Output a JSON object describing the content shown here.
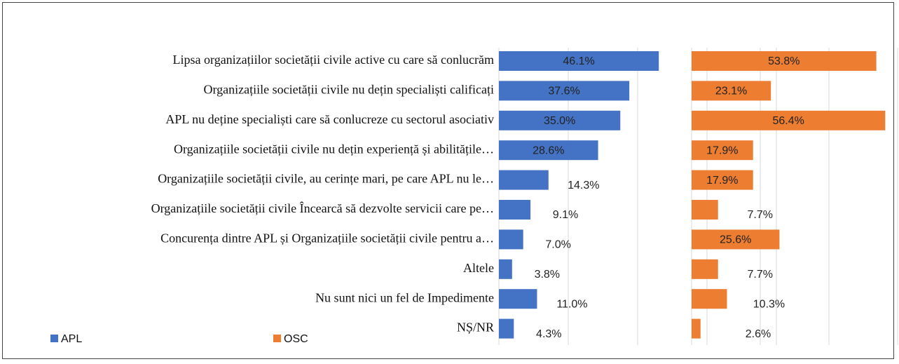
{
  "chart_data": {
    "type": "bar",
    "orientation": "horizontal",
    "categories": [
      "Lipsa organizațiilor societății civile active cu care să conlucrăm",
      "Organizațiile societății civile nu dețin specialiști calificați",
      "APL  nu deține specialiști care să conlucreze cu sectorul asociativ",
      "Organizațiile societății civile nu dețin experiență și abilitățile…",
      "Organizațiile societății civile, au cerințe mari, pe care APL nu le…",
      "Organizațiile societății civile Încearcă să dezvolte servicii care pe…",
      "Concurența  dintre APL și Organizațiile societății civile pentru a…",
      "Altele",
      "Nu sunt nici un fel de Impedimente",
      "NȘ/NR"
    ],
    "series": [
      {
        "name": "APL",
        "color": "#4472c4",
        "values": [
          46.1,
          37.6,
          35.0,
          28.6,
          14.3,
          9.1,
          7.0,
          3.8,
          11.0,
          4.3
        ],
        "value_labels": [
          "46.1%",
          "37.6%",
          "35.0%",
          "28.6%",
          "14.3%",
          "9.1%",
          "7.0%",
          "3.8%",
          "11.0%",
          "4.3%"
        ],
        "xlim": [
          0,
          80
        ],
        "xticks": [
          0,
          20,
          40,
          60,
          80
        ]
      },
      {
        "name": "OSC",
        "color": "#ed7d31",
        "values": [
          53.8,
          23.1,
          56.4,
          17.9,
          17.9,
          7.7,
          25.6,
          7.7,
          10.3,
          2.6
        ],
        "value_labels": [
          "53.8%",
          "23.1%",
          "56.4%",
          "17.9%",
          "17.9%",
          "7.7%",
          "25.6%",
          "7.7%",
          "10.3%",
          "2.6%"
        ],
        "xlim": [
          0,
          60
        ],
        "xticks": [
          0,
          20,
          40,
          60
        ]
      }
    ],
    "grid": true,
    "legend": "bottom-left"
  }
}
